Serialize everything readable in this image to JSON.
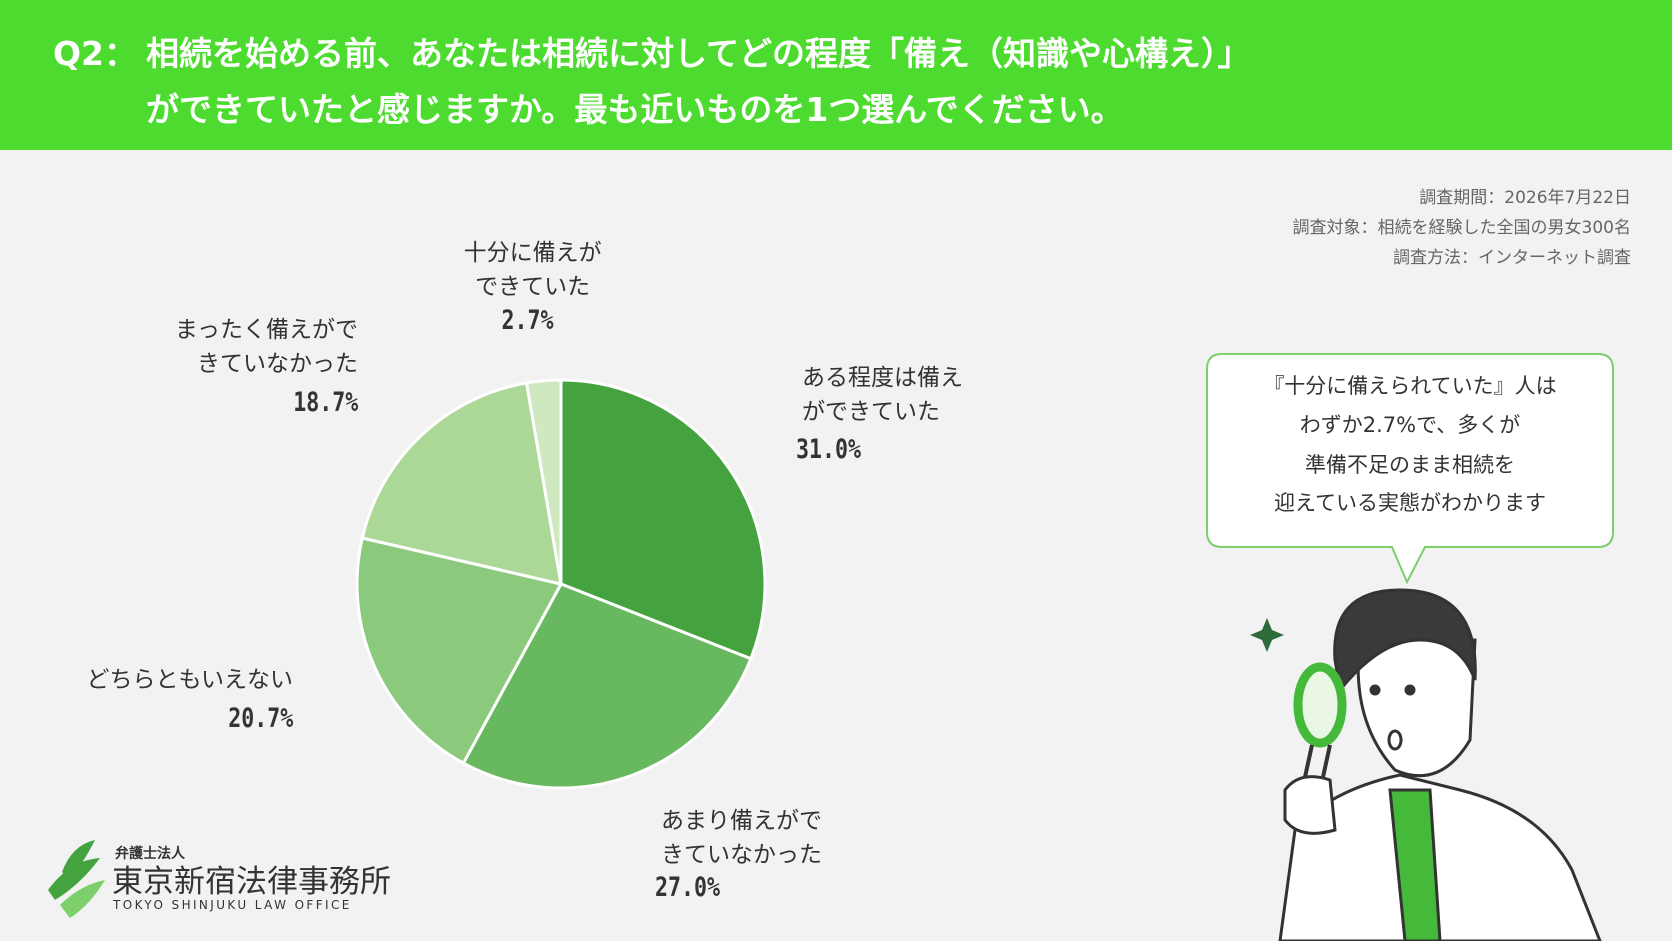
{
  "header": {
    "label": "Q2：",
    "question": [
      "相続を始める前、あなたは相続に対してどの程度「備え（知識や心構え）」",
      "ができていたと感じますか。最も近いものを1つ選んでください。"
    ]
  },
  "survey": [
    "調査期間：2026年7月22日",
    "調査対象：相続を経験した全国の男女300名",
    "調査方法：インターネット調査"
  ],
  "chart_data": {
    "type": "pie",
    "categories": [
      "ある程度は備えができていた",
      "あまり備えができていなかった",
      "どちらともいえない",
      "まったく備えができていなかった",
      "十分に備えができていた"
    ],
    "values": [
      31,
      27,
      20.7,
      18.7,
      2.7
    ],
    "value_labels": [
      "31.0%",
      "27.0%",
      "20.7%",
      "18.7%",
      "2.7%"
    ],
    "colors": [
      "#45a33f",
      "#67b85e",
      "#8bc97d",
      "#acd897",
      "#cfe8bf"
    ]
  },
  "callout": [
    "『十分に備えられていた』人は",
    "わずか2.7%で、多くが",
    "準備不足のまま相続を",
    "迎えている実態がわかります"
  ],
  "logo": {
    "kind": "弁護士法人",
    "name": "東京新宿法律事務所",
    "english": "TOKYO SHINJUKU LAW OFFICE"
  }
}
